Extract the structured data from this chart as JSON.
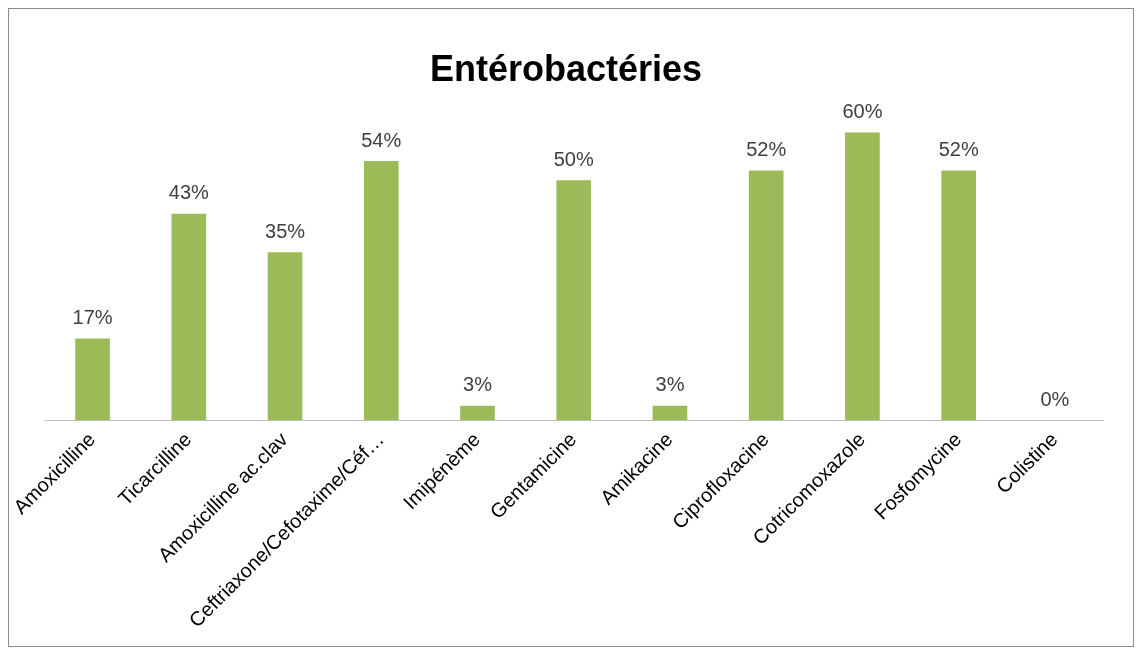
{
  "chart_data": {
    "type": "bar",
    "title": "Entérobactéries",
    "categories": [
      "Amoxicilline",
      "Ticarcilline",
      "Amoxicilline ac.clav",
      "Ceftriaxone/Cefotaxime/Céf…",
      "Imipénème",
      "Gentamicine",
      "Amikacine",
      "Ciprofloxacine",
      "Cotricomoxazole",
      "Fosfomycine",
      "Colistine"
    ],
    "values": [
      17,
      43,
      35,
      54,
      3,
      50,
      3,
      52,
      60,
      52,
      0
    ],
    "value_labels": [
      "17%",
      "43%",
      "35%",
      "54%",
      "3%",
      "50%",
      "3%",
      "52%",
      "60%",
      "52%",
      "0%"
    ],
    "color": "#9bbb59",
    "grid": false,
    "legend": false
  }
}
